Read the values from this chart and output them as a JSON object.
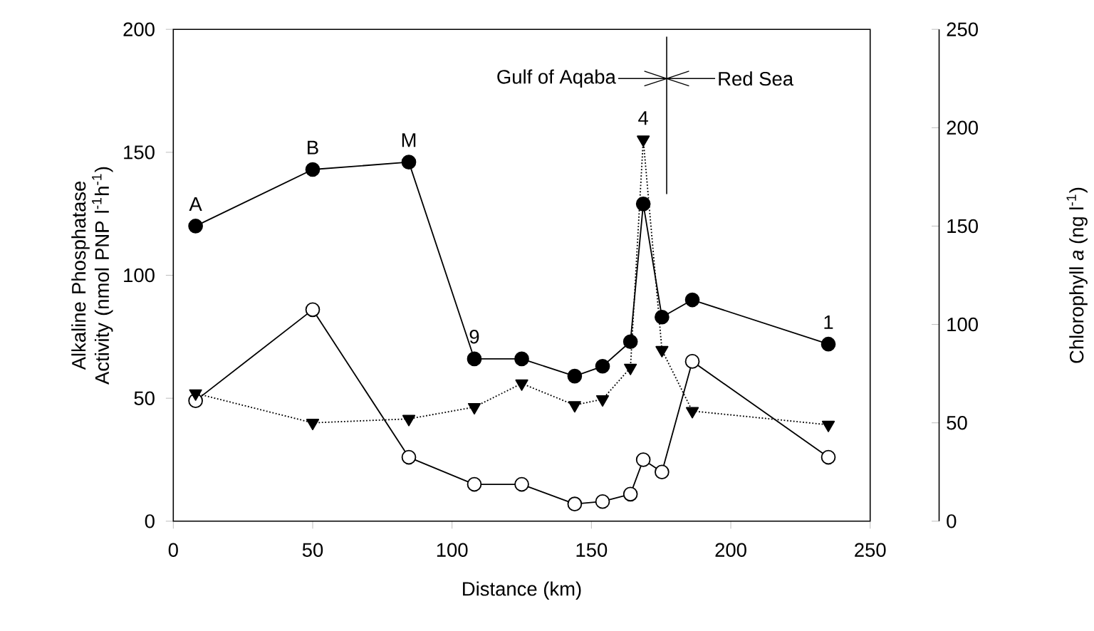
{
  "chart_data": {
    "type": "line",
    "xlabel": "Distance (km)",
    "ylabel": "Alkaline Phosphatase Activity (nmol PNP l$^{-1}$h$^{-1}$)",
    "y2label": "Chlorophyll *a* (ng l$^{-1}$)",
    "xlim": [
      0,
      250
    ],
    "xticks": [
      0,
      50,
      100,
      150,
      200,
      250
    ],
    "ylim": [
      0,
      200
    ],
    "yticks": [
      0,
      50,
      100,
      150,
      200
    ],
    "y2lim": [
      0,
      250
    ],
    "y2ticks": [
      0,
      50,
      100,
      150,
      200,
      250
    ],
    "series": [
      {
        "color": "#000000",
        "marker": "circle",
        "line_style": "solid",
        "x": [
          8,
          50,
          84.5,
          108,
          125,
          144,
          154,
          164,
          168.6,
          175.3,
          186.2,
          235
        ],
        "values": [
          120,
          143,
          146,
          66,
          66,
          59,
          63,
          73,
          129,
          83,
          90,
          72
        ]
      },
      {
        "color": "#000000",
        "colors": [
          "#ffffff",
          "#ffffff",
          "#ffffff",
          "#ffffff",
          "#ffffff",
          "#ffffff",
          "#ffffff",
          "#ffffff",
          "#ffffff",
          "#ffffff",
          "#ffffff",
          "#ffffff"
        ],
        "marker": "circle",
        "line_style": "solid",
        "x": [
          8,
          50,
          84.5,
          108,
          125,
          144,
          154,
          164,
          168.6,
          175.3,
          186.2,
          235
        ],
        "values": [
          49,
          86,
          26,
          15,
          15,
          7,
          8,
          11,
          25,
          20,
          65,
          26
        ]
      },
      {
        "color": "#000000",
        "marker": "triangle",
        "line_style": "dotted",
        "axis": "y2",
        "x": [
          8,
          50,
          84.5,
          108,
          125,
          144,
          154,
          164,
          168.6,
          175.3,
          186.2,
          235
        ],
        "values": [
          65,
          50,
          52,
          58,
          70,
          59,
          62,
          78,
          194,
          87,
          56,
          49
        ]
      }
    ],
    "ref_lines": [
      {
        "axis": "x",
        "value": 177
      }
    ],
    "annotations": [
      {
        "text": "A",
        "x": 8,
        "y": 120
      },
      {
        "text": "B",
        "x": 50,
        "y": 143
      },
      {
        "text": "M",
        "x": 84.5,
        "y": 146
      },
      {
        "text": "9",
        "x": 108,
        "y": 66
      },
      {
        "text": "4",
        "x": 168.6,
        "y": 155
      },
      {
        "text": "1",
        "x": 235,
        "y": 72
      },
      "Gulf of Aqaba",
      "Red Sea"
    ]
  }
}
